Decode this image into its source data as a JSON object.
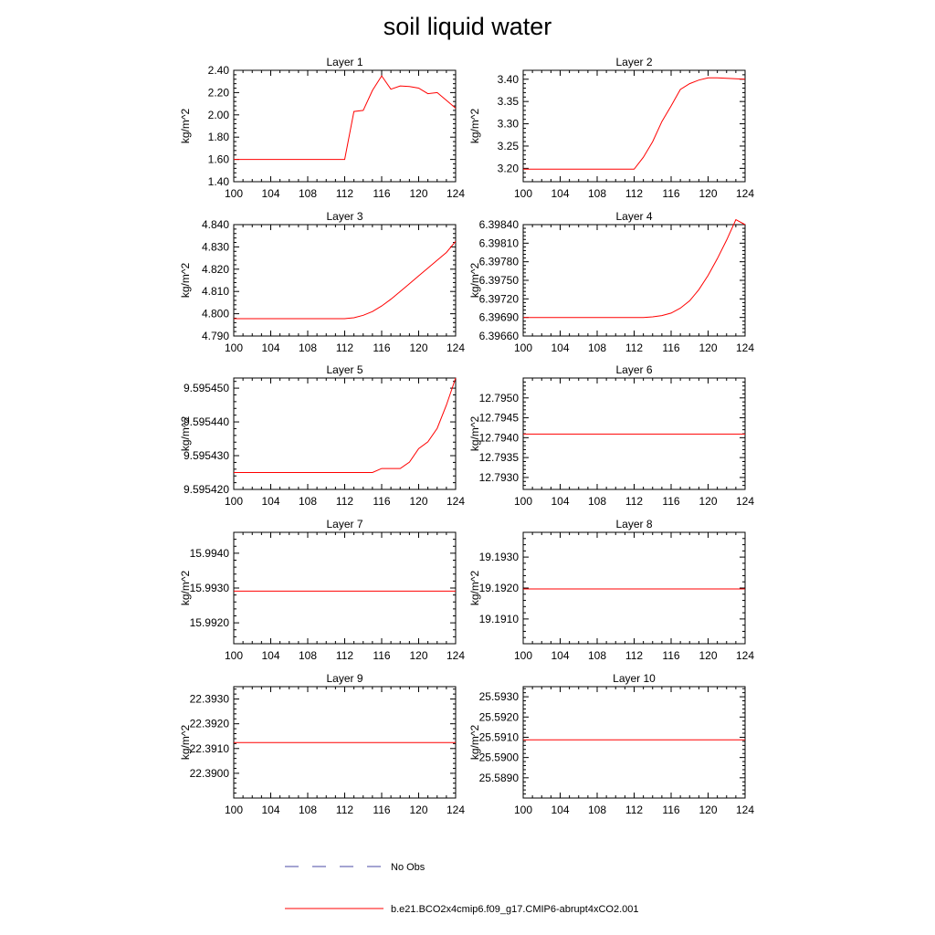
{
  "page": {
    "title": "soil liquid water"
  },
  "legend": {
    "items": [
      {
        "label": "No Obs",
        "color": "#4a4aa6",
        "dash": true
      },
      {
        "label": "b.e21.BCO2x4cmip6.f09_g17.CMIP6-abrupt4xCO2.001",
        "color": "#ff0000",
        "dash": false
      }
    ]
  },
  "chart_data": [
    {
      "type": "line",
      "title": "Layer 1",
      "ylabel": "kg/m^2",
      "xlabel": "",
      "xlim": [
        100,
        124
      ],
      "ylim": [
        1.4,
        2.4
      ],
      "xticks": [
        100,
        104,
        108,
        112,
        116,
        120,
        124
      ],
      "yticks": [
        1.4,
        1.6,
        1.8,
        2.0,
        2.2,
        2.4
      ],
      "ytick_labels": [
        "1.40",
        "1.60",
        "1.80",
        "2.00",
        "2.20",
        "2.40"
      ],
      "series": [
        {
          "color": "#ff0000",
          "x": [
            100,
            112,
            113,
            114,
            115,
            116,
            117,
            118,
            119,
            120,
            121,
            122,
            123,
            124
          ],
          "y": [
            1.6,
            1.6,
            2.03,
            2.04,
            2.22,
            2.35,
            2.23,
            2.26,
            2.255,
            2.24,
            2.19,
            2.2,
            2.13,
            2.06
          ]
        }
      ]
    },
    {
      "type": "line",
      "title": "Layer 2",
      "ylabel": "kg/m^2",
      "xlabel": "",
      "xlim": [
        100,
        124
      ],
      "ylim": [
        3.17,
        3.42
      ],
      "xticks": [
        100,
        104,
        108,
        112,
        116,
        120,
        124
      ],
      "yticks": [
        3.2,
        3.25,
        3.3,
        3.35,
        3.4
      ],
      "ytick_labels": [
        "3.20",
        "3.25",
        "3.30",
        "3.35",
        "3.40"
      ],
      "series": [
        {
          "color": "#ff0000",
          "x": [
            100,
            112,
            113,
            114,
            115,
            116,
            117,
            118,
            119,
            120,
            121,
            122,
            123,
            124
          ],
          "y": [
            3.198,
            3.198,
            3.225,
            3.26,
            3.305,
            3.34,
            3.377,
            3.39,
            3.398,
            3.403,
            3.403,
            3.402,
            3.401,
            3.4
          ]
        }
      ]
    },
    {
      "type": "line",
      "title": "Layer 3",
      "ylabel": "kg/m^2",
      "xlabel": "",
      "xlim": [
        100,
        124
      ],
      "ylim": [
        4.79,
        4.84
      ],
      "xticks": [
        100,
        104,
        108,
        112,
        116,
        120,
        124
      ],
      "yticks": [
        4.79,
        4.8,
        4.81,
        4.82,
        4.83,
        4.84
      ],
      "ytick_labels": [
        "4.790",
        "4.800",
        "4.810",
        "4.820",
        "4.830",
        "4.840"
      ],
      "series": [
        {
          "color": "#ff0000",
          "x": [
            100,
            112,
            113,
            114,
            115,
            116,
            117,
            118,
            119,
            120,
            121,
            122,
            123,
            124
          ],
          "y": [
            4.7978,
            4.7978,
            4.7982,
            4.7993,
            4.801,
            4.8035,
            4.8065,
            4.81,
            4.8135,
            4.817,
            4.8205,
            4.824,
            4.8275,
            4.8325
          ]
        }
      ]
    },
    {
      "type": "line",
      "title": "Layer 4",
      "ylabel": "kg/m^2",
      "xlabel": "",
      "xlim": [
        100,
        124
      ],
      "ylim": [
        6.3966,
        6.3984
      ],
      "xticks": [
        100,
        104,
        108,
        112,
        116,
        120,
        124
      ],
      "yticks": [
        6.3966,
        6.3969,
        6.3972,
        6.3975,
        6.3978,
        6.3981,
        6.3984
      ],
      "ytick_labels": [
        "6.39660",
        "6.39690",
        "6.39720",
        "6.39750",
        "6.39780",
        "6.39810",
        "6.39840"
      ],
      "series": [
        {
          "color": "#ff0000",
          "x": [
            100,
            112,
            113,
            114,
            115,
            116,
            117,
            118,
            119,
            120,
            121,
            122,
            123,
            124
          ],
          "y": [
            6.3969,
            6.3969,
            6.3969,
            6.39691,
            6.39693,
            6.39697,
            6.39705,
            6.39717,
            6.39735,
            6.39758,
            6.39785,
            6.39815,
            6.39848,
            6.3984
          ]
        }
      ]
    },
    {
      "type": "line",
      "title": "Layer 5",
      "ylabel": "kg/m^2",
      "xlabel": "",
      "xlim": [
        100,
        124
      ],
      "ylim": [
        9.59542,
        9.595453
      ],
      "xticks": [
        100,
        104,
        108,
        112,
        116,
        120,
        124
      ],
      "yticks": [
        9.59542,
        9.59543,
        9.59544,
        9.59545
      ],
      "ytick_labels": [
        "9.595420",
        "9.595430",
        "9.595440",
        "9.595450"
      ],
      "series": [
        {
          "color": "#ff0000",
          "x": [
            100,
            115,
            116,
            117,
            118,
            119,
            120,
            121,
            122,
            123,
            124
          ],
          "y": [
            9.595425,
            9.595425,
            9.5954262,
            9.5954262,
            9.5954262,
            9.5954281,
            9.5954321,
            9.5954341,
            9.5954381,
            9.595445,
            9.595453
          ]
        }
      ]
    },
    {
      "type": "line",
      "title": "Layer 6",
      "ylabel": "kg/m^2",
      "xlabel": "",
      "xlim": [
        100,
        124
      ],
      "ylim": [
        12.7927,
        12.7955
      ],
      "xticks": [
        100,
        104,
        108,
        112,
        116,
        120,
        124
      ],
      "yticks": [
        12.793,
        12.7935,
        12.794,
        12.7945,
        12.795
      ],
      "ytick_labels": [
        "12.7930",
        "12.7935",
        "12.7940",
        "12.7945",
        "12.7950"
      ],
      "series": [
        {
          "color": "#ff0000",
          "x": [
            100,
            124
          ],
          "y": [
            12.79409,
            12.79409
          ]
        }
      ]
    },
    {
      "type": "line",
      "title": "Layer 7",
      "ylabel": "kg/m^2",
      "xlabel": "",
      "xlim": [
        100,
        124
      ],
      "ylim": [
        15.9914,
        15.9946
      ],
      "xticks": [
        100,
        104,
        108,
        112,
        116,
        120,
        124
      ],
      "yticks": [
        15.992,
        15.993,
        15.994
      ],
      "ytick_labels": [
        "15.9920",
        "15.9930",
        "15.9940"
      ],
      "series": [
        {
          "color": "#ff0000",
          "x": [
            100,
            124
          ],
          "y": [
            15.99291,
            15.99291
          ]
        }
      ]
    },
    {
      "type": "line",
      "title": "Layer 8",
      "ylabel": "kg/m^2",
      "xlabel": "",
      "xlim": [
        100,
        124
      ],
      "ylim": [
        19.1902,
        19.1938
      ],
      "xticks": [
        100,
        104,
        108,
        112,
        116,
        120,
        124
      ],
      "yticks": [
        19.191,
        19.192,
        19.193
      ],
      "ytick_labels": [
        "19.1910",
        "19.1920",
        "19.1930"
      ],
      "series": [
        {
          "color": "#ff0000",
          "x": [
            100,
            124
          ],
          "y": [
            19.19197,
            19.19197
          ]
        }
      ]
    },
    {
      "type": "line",
      "title": "Layer 9",
      "ylabel": "kg/m^2",
      "xlabel": "",
      "xlim": [
        100,
        124
      ],
      "ylim": [
        22.389,
        22.3935
      ],
      "xticks": [
        100,
        104,
        108,
        112,
        116,
        120,
        124
      ],
      "yticks": [
        22.39,
        22.391,
        22.392,
        22.393
      ],
      "ytick_labels": [
        "22.3900",
        "22.3910",
        "22.3920",
        "22.3930"
      ],
      "series": [
        {
          "color": "#ff0000",
          "x": [
            100,
            124
          ],
          "y": [
            22.39124,
            22.39124
          ]
        }
      ]
    },
    {
      "type": "line",
      "title": "Layer 10",
      "ylabel": "kg/m^2",
      "xlabel": "",
      "xlim": [
        100,
        124
      ],
      "ylim": [
        25.588,
        25.5935
      ],
      "xticks": [
        100,
        104,
        108,
        112,
        116,
        120,
        124
      ],
      "yticks": [
        25.589,
        25.59,
        25.591,
        25.592,
        25.593
      ],
      "ytick_labels": [
        "25.5890",
        "25.5900",
        "25.5910",
        "25.5920",
        "25.5930"
      ],
      "series": [
        {
          "color": "#ff0000",
          "x": [
            100,
            124
          ],
          "y": [
            25.59087,
            25.59087
          ]
        }
      ]
    }
  ]
}
